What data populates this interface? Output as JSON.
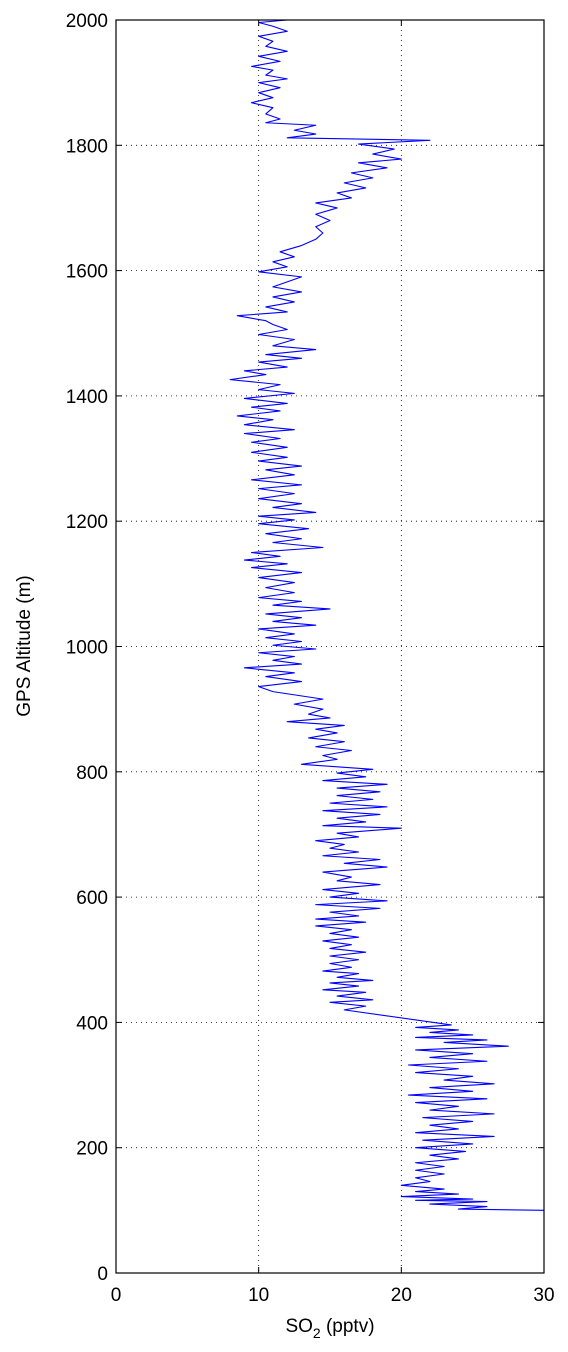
{
  "chart_data": {
    "type": "line",
    "xlabel": {
      "main": "SO",
      "sub": "2",
      "unit": " (pptv)"
    },
    "ylabel": "GPS Altitude (m)",
    "xlim": [
      0,
      30
    ],
    "ylim": [
      0,
      2000
    ],
    "xticks": [
      0,
      10,
      20,
      30
    ],
    "yticks": [
      0,
      200,
      400,
      600,
      800,
      1000,
      1200,
      1400,
      1600,
      1800,
      2000
    ],
    "grid": true,
    "series": [
      {
        "color": "#0000ff",
        "points": [
          [
            30,
            100
          ],
          [
            24,
            102
          ],
          [
            26,
            106
          ],
          [
            22,
            110
          ],
          [
            26,
            114
          ],
          [
            21,
            116
          ],
          [
            25,
            118
          ],
          [
            20,
            122
          ],
          [
            24,
            126
          ],
          [
            21,
            130
          ],
          [
            23,
            134
          ],
          [
            20,
            140
          ],
          [
            22,
            146
          ],
          [
            21,
            152
          ],
          [
            23,
            158
          ],
          [
            21,
            164
          ],
          [
            23,
            170
          ],
          [
            21,
            176
          ],
          [
            24,
            182
          ],
          [
            22,
            188
          ],
          [
            24.5,
            194
          ],
          [
            21,
            200
          ],
          [
            25,
            206
          ],
          [
            21.5,
            212
          ],
          [
            26.5,
            218
          ],
          [
            21,
            224
          ],
          [
            24,
            230
          ],
          [
            22,
            236
          ],
          [
            25,
            242
          ],
          [
            21.5,
            248
          ],
          [
            26.5,
            254
          ],
          [
            22,
            260
          ],
          [
            24,
            266
          ],
          [
            21,
            272
          ],
          [
            26,
            278
          ],
          [
            20.5,
            284
          ],
          [
            25,
            290
          ],
          [
            22,
            296
          ],
          [
            26.5,
            302
          ],
          [
            23,
            308
          ],
          [
            25,
            314
          ],
          [
            21,
            320
          ],
          [
            24,
            326
          ],
          [
            20.5,
            332
          ],
          [
            26,
            338
          ],
          [
            22,
            344
          ],
          [
            25,
            350
          ],
          [
            21,
            356
          ],
          [
            27.5,
            362
          ],
          [
            23,
            368
          ],
          [
            26,
            372
          ],
          [
            21,
            376
          ],
          [
            25,
            380
          ],
          [
            22,
            384
          ],
          [
            24,
            388
          ],
          [
            21,
            392
          ],
          [
            23.5,
            396
          ],
          [
            16,
            420
          ],
          [
            17.5,
            426
          ],
          [
            15,
            432
          ],
          [
            18,
            436
          ],
          [
            15.5,
            442
          ],
          [
            17.5,
            448
          ],
          [
            14.5,
            452
          ],
          [
            17,
            458
          ],
          [
            15,
            463
          ],
          [
            18,
            467
          ],
          [
            15.5,
            472
          ],
          [
            17,
            478
          ],
          [
            14.5,
            482
          ],
          [
            16.5,
            488
          ],
          [
            15,
            494
          ],
          [
            17,
            500
          ],
          [
            15,
            506
          ],
          [
            17.5,
            512
          ],
          [
            15,
            518
          ],
          [
            16.5,
            524
          ],
          [
            14.5,
            530
          ],
          [
            17,
            536
          ],
          [
            15,
            542
          ],
          [
            16.5,
            548
          ],
          [
            14,
            554
          ],
          [
            17.5,
            560
          ],
          [
            14,
            565
          ],
          [
            17,
            570
          ],
          [
            15,
            576
          ],
          [
            18.5,
            582
          ],
          [
            14,
            588
          ],
          [
            19,
            594
          ],
          [
            15,
            600
          ],
          [
            17,
            606
          ],
          [
            14.5,
            612
          ],
          [
            18.5,
            620
          ],
          [
            15.5,
            626
          ],
          [
            16.5,
            632
          ],
          [
            14.5,
            640
          ],
          [
            19,
            648
          ],
          [
            16,
            654
          ],
          [
            18.5,
            660
          ],
          [
            14.5,
            666
          ],
          [
            17,
            672
          ],
          [
            15,
            678
          ],
          [
            16,
            684
          ],
          [
            14,
            690
          ],
          [
            17,
            696
          ],
          [
            15.5,
            702
          ],
          [
            20,
            710
          ],
          [
            14.5,
            714
          ],
          [
            17.5,
            720
          ],
          [
            15.5,
            726
          ],
          [
            18.5,
            732
          ],
          [
            14.5,
            738
          ],
          [
            19,
            744
          ],
          [
            15,
            750
          ],
          [
            18,
            756
          ],
          [
            15.5,
            762
          ],
          [
            18.5,
            768
          ],
          [
            15.5,
            774
          ],
          [
            19,
            780
          ],
          [
            14.5,
            786
          ],
          [
            17.5,
            792
          ],
          [
            15.5,
            798
          ],
          [
            18,
            804
          ],
          [
            13,
            812
          ],
          [
            15.5,
            820
          ],
          [
            14.5,
            826
          ],
          [
            16.5,
            834
          ],
          [
            14,
            840
          ],
          [
            16,
            848
          ],
          [
            13.5,
            854
          ],
          [
            15.5,
            862
          ],
          [
            14,
            868
          ],
          [
            16,
            874
          ],
          [
            12,
            880
          ],
          [
            15,
            886
          ],
          [
            13.5,
            892
          ],
          [
            14.5,
            900
          ],
          [
            12.5,
            908
          ],
          [
            14.5,
            916
          ],
          [
            11,
            928
          ],
          [
            10,
            936
          ],
          [
            13,
            944
          ],
          [
            10.5,
            952
          ],
          [
            12.5,
            958
          ],
          [
            9,
            966
          ],
          [
            13,
            972
          ],
          [
            11,
            978
          ],
          [
            12.5,
            984
          ],
          [
            10,
            990
          ],
          [
            14,
            996
          ],
          [
            11,
            1002
          ],
          [
            13,
            1008
          ],
          [
            10.5,
            1014
          ],
          [
            12.5,
            1020
          ],
          [
            10,
            1028
          ],
          [
            14,
            1034
          ],
          [
            11,
            1040
          ],
          [
            13,
            1046
          ],
          [
            10.5,
            1052
          ],
          [
            15,
            1060
          ],
          [
            11,
            1066
          ],
          [
            13,
            1072
          ],
          [
            10,
            1078
          ],
          [
            12.5,
            1086
          ],
          [
            10.5,
            1094
          ],
          [
            12.5,
            1102
          ],
          [
            10,
            1110
          ],
          [
            13,
            1118
          ],
          [
            9.5,
            1126
          ],
          [
            12,
            1132
          ],
          [
            9,
            1138
          ],
          [
            11.5,
            1144
          ],
          [
            9.5,
            1150
          ],
          [
            14.5,
            1158
          ],
          [
            11,
            1166
          ],
          [
            13,
            1172
          ],
          [
            10.5,
            1180
          ],
          [
            13.5,
            1188
          ],
          [
            10,
            1196
          ],
          [
            12.5,
            1202
          ],
          [
            10,
            1208
          ],
          [
            14,
            1214
          ],
          [
            11,
            1222
          ],
          [
            13,
            1228
          ],
          [
            10,
            1236
          ],
          [
            12.5,
            1244
          ],
          [
            10,
            1252
          ],
          [
            13,
            1258
          ],
          [
            9.5,
            1266
          ],
          [
            12.5,
            1274
          ],
          [
            10.5,
            1282
          ],
          [
            13,
            1288
          ],
          [
            10,
            1296
          ],
          [
            12,
            1302
          ],
          [
            9.5,
            1310
          ],
          [
            12,
            1318
          ],
          [
            9.5,
            1326
          ],
          [
            11.5,
            1332
          ],
          [
            9,
            1340
          ],
          [
            12.5,
            1346
          ],
          [
            9,
            1354
          ],
          [
            11,
            1362
          ],
          [
            8.5,
            1368
          ],
          [
            11.5,
            1376
          ],
          [
            9.5,
            1382
          ],
          [
            12,
            1388
          ],
          [
            9,
            1396
          ],
          [
            12.5,
            1404
          ],
          [
            10,
            1410
          ],
          [
            11.5,
            1418
          ],
          [
            8,
            1426
          ],
          [
            10.5,
            1434
          ],
          [
            9,
            1440
          ],
          [
            12,
            1446
          ],
          [
            10,
            1454
          ],
          [
            13,
            1460
          ],
          [
            10.5,
            1466
          ],
          [
            14,
            1474
          ],
          [
            11,
            1480
          ],
          [
            12.5,
            1490
          ],
          [
            10,
            1498
          ],
          [
            12,
            1506
          ],
          [
            11,
            1514
          ],
          [
            10.5,
            1520
          ],
          [
            8.5,
            1528
          ],
          [
            12,
            1534
          ],
          [
            10.5,
            1542
          ],
          [
            12.5,
            1550
          ],
          [
            11,
            1558
          ],
          [
            13,
            1566
          ],
          [
            11,
            1574
          ],
          [
            12,
            1582
          ],
          [
            13,
            1590
          ],
          [
            10,
            1598
          ],
          [
            12,
            1606
          ],
          [
            11,
            1614
          ],
          [
            12.5,
            1622
          ],
          [
            11.5,
            1630
          ],
          [
            13,
            1640
          ],
          [
            14,
            1650
          ],
          [
            14.5,
            1660
          ],
          [
            14,
            1670
          ],
          [
            15,
            1680
          ],
          [
            14,
            1690
          ],
          [
            15.5,
            1700
          ],
          [
            14,
            1708
          ],
          [
            16.5,
            1716
          ],
          [
            15.5,
            1724
          ],
          [
            17.5,
            1732
          ],
          [
            16,
            1740
          ],
          [
            18,
            1748
          ],
          [
            16.5,
            1756
          ],
          [
            19,
            1764
          ],
          [
            17,
            1772
          ],
          [
            20,
            1778
          ],
          [
            18,
            1786
          ],
          [
            19.5,
            1794
          ],
          [
            17,
            1802
          ],
          [
            22,
            1808
          ],
          [
            12,
            1812
          ],
          [
            14,
            1818
          ],
          [
            12.5,
            1824
          ],
          [
            14,
            1832
          ],
          [
            10.5,
            1836
          ],
          [
            11.5,
            1842
          ],
          [
            10.5,
            1850
          ],
          [
            11,
            1860
          ],
          [
            9.5,
            1868
          ],
          [
            11,
            1876
          ],
          [
            10,
            1884
          ],
          [
            11.5,
            1892
          ],
          [
            10,
            1900
          ],
          [
            12,
            1906
          ],
          [
            10.5,
            1912
          ],
          [
            11,
            1920
          ],
          [
            9.5,
            1926
          ],
          [
            11.5,
            1934
          ],
          [
            10,
            1942
          ],
          [
            12,
            1950
          ],
          [
            10.5,
            1958
          ],
          [
            11,
            1966
          ],
          [
            10,
            1974
          ],
          [
            12,
            1982
          ],
          [
            11,
            1990
          ],
          [
            10,
            1996
          ],
          [
            12,
            2000
          ]
        ]
      }
    ]
  }
}
